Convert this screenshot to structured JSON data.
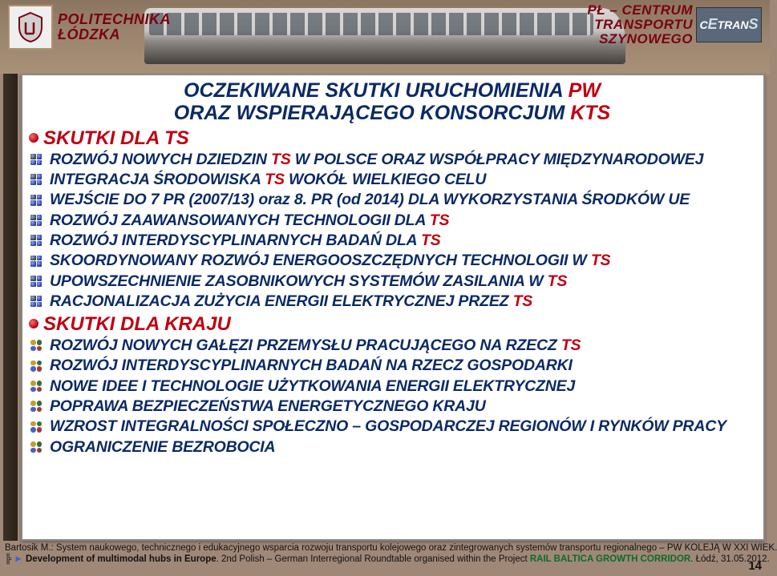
{
  "header": {
    "left": {
      "line1": "POLITECHNIKA",
      "line2": "ŁÓDZKA"
    },
    "right": {
      "line1": "PŁ – CENTRUM",
      "line2": "TRANSPORTU",
      "line3": "SZYNOWEGO",
      "logo_text_pre": "C",
      "logo_text_mid": "E",
      "logo_text_main": "TRAN",
      "logo_text_suf": "S"
    }
  },
  "title": {
    "l1a": "OCZEKIWANE SKUTKI URUCHOMIENIA ",
    "l1b": "PW",
    "l2a": "ORAZ WSPIERAJĄCEGO KONSORCJUM ",
    "l2b": "KTS"
  },
  "section1": {
    "head": "SKUTKI DLA TS"
  },
  "s1_items": [
    {
      "pre": "ROZWÓJ NOWYCH DZIEDZIN ",
      "red": "TS",
      "post": " W POLSCE ORAZ WSPÓŁPRACY MIĘDZYNARODOWEJ"
    },
    {
      "pre": "INTEGRACJA ŚRODOWISKA ",
      "red": "TS",
      "post": " WOKÓŁ WIELKIEGO CELU"
    },
    {
      "pre": "WEJŚCIE DO 7 PR (2007/13) oraz 8. PR (od 2014) DLA WYKORZYSTANIA ŚRODKÓW UE",
      "red": "",
      "post": ""
    },
    {
      "pre": "ROZWÓJ ZAAWANSOWANYCH TECHNOLOGII DLA ",
      "red": "TS",
      "post": ""
    },
    {
      "pre": "ROZWÓJ INTERDYSCYPLINARNYCH BADAŃ DLA ",
      "red": "TS",
      "post": ""
    },
    {
      "pre": "SKOORDYNOWANY ROZWÓJ ENERGOOSZCZĘDNYCH TECHNOLOGII W ",
      "red": "TS",
      "post": ""
    },
    {
      "pre": "UPOWSZECHNIENIE ZASOBNIKOWYCH SYSTEMÓW ZASILANIA W ",
      "red": "TS",
      "post": ""
    },
    {
      "pre": "RACJONALIZACJA ZUŻYCIA ENERGII ELEKTRYCZNEJ PRZEZ ",
      "red": "TS",
      "post": ""
    }
  ],
  "section2": {
    "head": "SKUTKI DLA KRAJU"
  },
  "s2_items": [
    {
      "pre": "ROZWÓJ NOWYCH GAŁĘZI PRZEMYSŁU PRACUJĄCEGO NA RZECZ ",
      "red": "TS",
      "post": ""
    },
    {
      "pre": "ROZWÓJ INTERDYSCYPLINARNYCH BADAŃ NA RZECZ GOSPODARKI",
      "red": "",
      "post": ""
    },
    {
      "pre": "NOWE IDEE I TECHNOLOGIE UŻYTKOWANIA ENERGII ELEKTRYCZNEJ",
      "red": "",
      "post": ""
    },
    {
      "pre": "POPRAWA BEZPIECZEŃSTWA ENERGETYCZNEGO KRAJU",
      "red": "",
      "post": ""
    },
    {
      "pre": "WZROST INTEGRALNOŚCI SPOŁECZNO – GOSPODARCZEJ REGIONÓW I RYNKÓW PRACY",
      "red": "",
      "post": ""
    },
    {
      "pre": "OGRANICZENIE BEZROBOCIA",
      "red": "",
      "post": ""
    }
  ],
  "footer": {
    "line1": "Bartosik M.: System naukowego, technicznego i edukacyjnego wsparcia rozwoju transportu kolejowego oraz zintegrowanych systemów transportu regionalnego – PW KOLEJĄ W XXI WIEK.",
    "line2_pre": "Development of multimodal hubs in Europe",
    "line2_mid": ". 2nd Polish – German Interregional Roundtable organised within the Project ",
    "line2_proj": "RAIL BALTICA GROWTH CORRIDOR",
    "line2_post": ". Łódź, 31.05.2012."
  },
  "page": "14",
  "colors": {
    "navy": "#0b2a66",
    "red": "#c00010",
    "bg": "#a08878",
    "panel": "#ffffff"
  }
}
